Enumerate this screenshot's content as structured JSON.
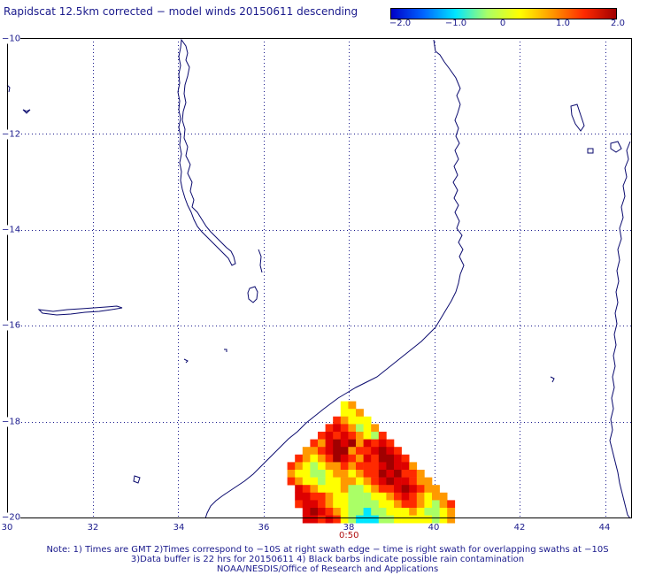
{
  "title": "Rapidscat 12.5km corrected − model winds 20150611 descending",
  "colorbar": {
    "ticks": [
      "−2.0",
      "−1.0",
      "0",
      "1.0",
      "2.0"
    ],
    "colors": [
      "#0000c8",
      "#0064ff",
      "#00e6ff",
      "#aaff66",
      "#ffff00",
      "#ff9900",
      "#ff2a00",
      "#a00000"
    ]
  },
  "map": {
    "lon_ticks": [
      "30",
      "32",
      "34",
      "36",
      "38",
      "40",
      "42",
      "44"
    ],
    "lat_ticks": [
      "−10",
      "−12",
      "−14",
      "−16",
      "−18",
      "−20"
    ],
    "lon_range": [
      30,
      44.6
    ],
    "lat_range": [
      -20,
      -10
    ],
    "grid": true,
    "swath_time": "0:50",
    "swath_levels": [
      [
        0,
        0,
        0,
        0,
        0,
        0,
        0,
        0,
        0,
        0,
        0,
        0,
        0,
        0,
        0,
        0,
        0,
        0,
        0,
        0,
        0,
        0,
        0
      ],
      [
        0,
        0,
        0,
        0,
        0,
        0,
        0,
        0,
        4,
        5,
        0,
        0,
        0,
        0,
        0,
        0,
        0,
        0,
        0,
        0,
        0,
        0,
        0
      ],
      [
        0,
        0,
        0,
        0,
        0,
        0,
        0,
        0,
        4,
        4,
        5,
        0,
        0,
        0,
        0,
        0,
        0,
        0,
        0,
        0,
        0,
        0,
        0
      ],
      [
        0,
        0,
        0,
        0,
        0,
        0,
        0,
        6,
        5,
        4,
        4,
        4,
        0,
        0,
        0,
        0,
        0,
        0,
        0,
        0,
        0,
        0,
        0
      ],
      [
        0,
        0,
        0,
        0,
        0,
        0,
        6,
        7,
        6,
        5,
        3,
        4,
        5,
        0,
        0,
        0,
        0,
        0,
        0,
        0,
        0,
        0,
        0
      ],
      [
        0,
        0,
        0,
        0,
        0,
        6,
        7,
        6,
        7,
        6,
        5,
        4,
        3,
        6,
        0,
        0,
        0,
        0,
        0,
        0,
        0,
        0,
        0
      ],
      [
        0,
        0,
        0,
        0,
        6,
        5,
        7,
        8,
        7,
        8,
        5,
        7,
        6,
        7,
        6,
        0,
        0,
        0,
        0,
        0,
        0,
        0,
        0
      ],
      [
        0,
        0,
        0,
        5,
        5,
        6,
        7,
        8,
        8,
        5,
        6,
        6,
        7,
        8,
        7,
        6,
        0,
        0,
        0,
        0,
        0,
        0,
        0
      ],
      [
        0,
        0,
        6,
        5,
        4,
        5,
        6,
        8,
        7,
        6,
        5,
        7,
        6,
        8,
        8,
        7,
        6,
        0,
        0,
        0,
        0,
        0,
        0
      ],
      [
        0,
        6,
        5,
        4,
        3,
        4,
        5,
        5,
        6,
        5,
        6,
        6,
        6,
        7,
        8,
        7,
        7,
        5,
        0,
        0,
        0,
        0,
        0
      ],
      [
        0,
        5,
        4,
        4,
        3,
        3,
        4,
        5,
        5,
        4,
        5,
        6,
        6,
        8,
        7,
        8,
        6,
        6,
        5,
        0,
        0,
        0,
        0
      ],
      [
        0,
        6,
        5,
        4,
        4,
        3,
        4,
        4,
        5,
        5,
        4,
        5,
        6,
        7,
        8,
        7,
        7,
        6,
        5,
        5,
        0,
        0,
        0
      ],
      [
        0,
        0,
        7,
        6,
        5,
        4,
        4,
        4,
        5,
        3,
        3,
        4,
        5,
        6,
        6,
        7,
        8,
        7,
        6,
        5,
        5,
        0,
        0
      ],
      [
        0,
        0,
        7,
        7,
        6,
        6,
        5,
        4,
        4,
        3,
        3,
        3,
        4,
        4,
        5,
        6,
        7,
        6,
        5,
        4,
        5,
        5,
        0
      ],
      [
        0,
        0,
        6,
        7,
        7,
        6,
        5,
        4,
        4,
        3,
        3,
        3,
        3,
        4,
        4,
        5,
        6,
        6,
        5,
        4,
        3,
        5,
        6
      ],
      [
        0,
        0,
        0,
        7,
        8,
        7,
        6,
        5,
        4,
        3,
        3,
        2,
        3,
        3,
        4,
        4,
        4,
        5,
        4,
        3,
        3,
        4,
        5
      ],
      [
        0,
        0,
        0,
        7,
        7,
        6,
        7,
        6,
        4,
        3,
        2,
        2,
        2,
        3,
        3,
        4,
        4,
        4,
        4,
        4,
        3,
        4,
        5
      ]
    ]
  },
  "notes": [
    "Note: 1) Times are GMT 2)Times correspond to −10S at right swath edge − time is right swath for overlapping swaths at −10S",
    "3)Data buffer is 22 hrs for 20150611 4) Black barbs indicate possible rain contamination",
    "NOAA/NESDIS/Office of Research and Applications"
  ]
}
